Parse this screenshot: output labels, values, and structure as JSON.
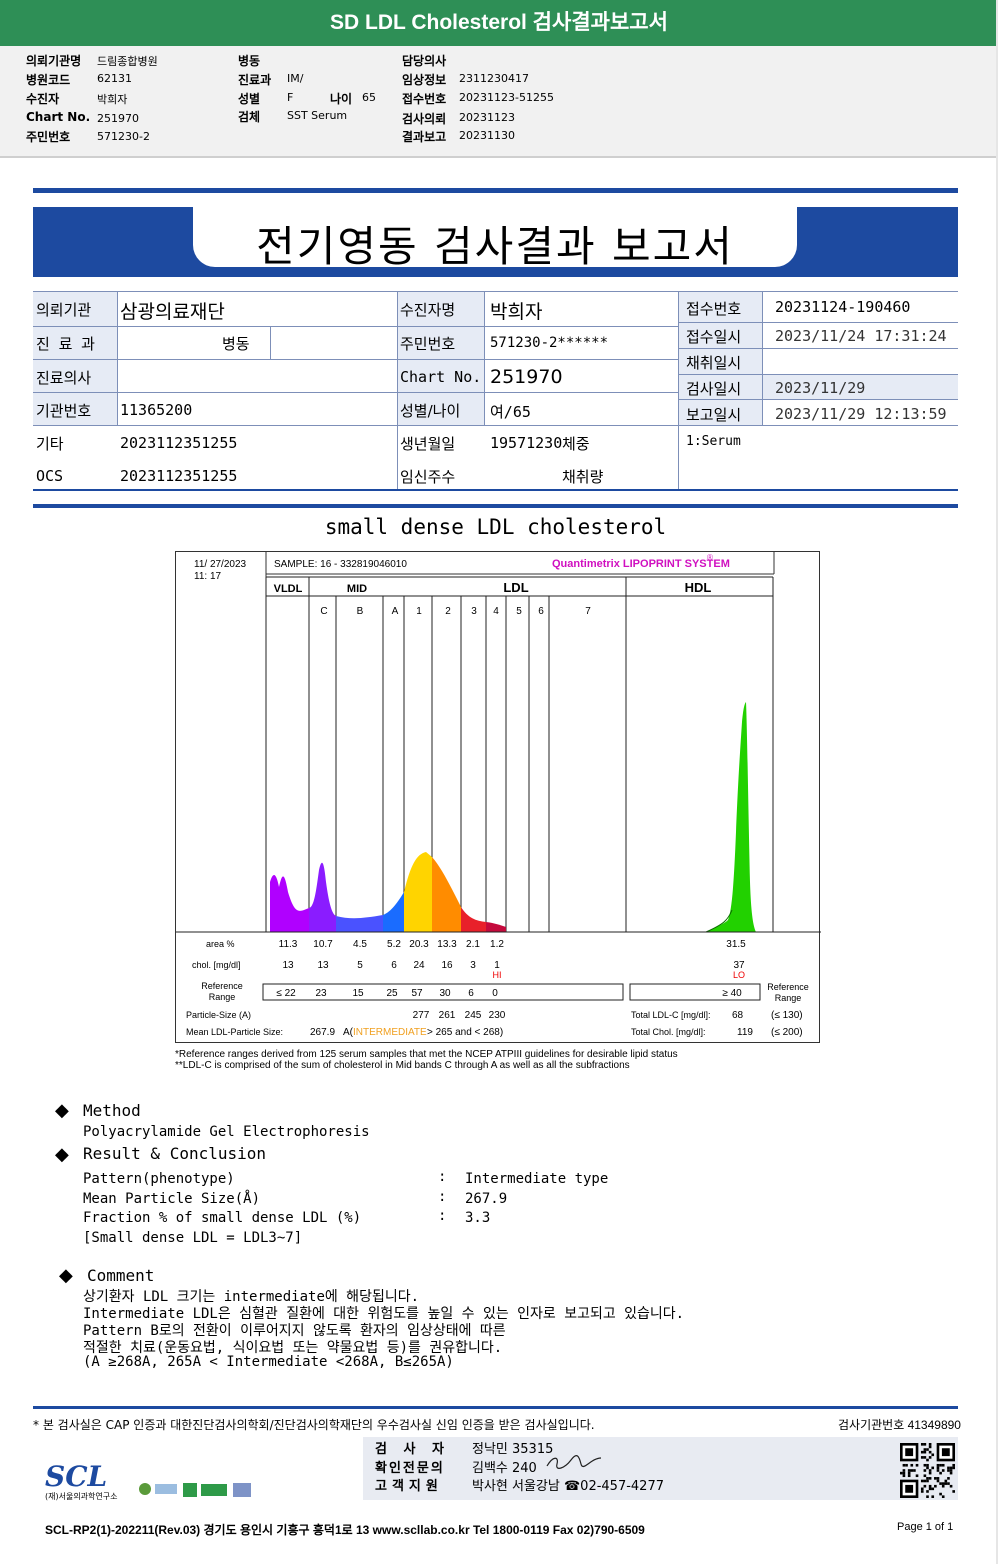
{
  "header": {
    "title": "SD LDL Cholesterol 검사결과보고서"
  },
  "info": {
    "col1": [
      {
        "label": "의뢰기관명",
        "value": "드림종합병원"
      },
      {
        "label": "병원코드",
        "value": "62131"
      },
      {
        "label": "수진자",
        "value": "박희자"
      },
      {
        "label": "Chart No.",
        "value": "251970"
      },
      {
        "label": "주민번호",
        "value": "571230-2"
      }
    ],
    "col2": [
      {
        "label": "병동",
        "value": ""
      },
      {
        "label": "진료과",
        "value": "IM/"
      },
      {
        "label": "성별",
        "value": "F"
      },
      {
        "label": "검체",
        "value": "SST Serum"
      }
    ],
    "age_label": "나이",
    "age_value": "65",
    "col3": [
      {
        "label": "담당의사",
        "value": ""
      },
      {
        "label": "임상정보",
        "value": "2311230417"
      },
      {
        "label": "접수번호",
        "value": "20231123-51255"
      },
      {
        "label": "검사의뢰",
        "value": "20231123"
      },
      {
        "label": "결과보고",
        "value": "20231130"
      }
    ]
  },
  "report": {
    "title": "전기영동 검사결과 보고서",
    "left_rows": [
      {
        "label": "의뢰기관",
        "value": "삼광의료재단"
      },
      {
        "label": "진 료 과",
        "value": "병동"
      },
      {
        "label": "진료의사",
        "value": ""
      },
      {
        "label": "기관번호",
        "value": "11365200"
      },
      {
        "label": "기타",
        "value": "2023112351255"
      },
      {
        "label": "OCS",
        "value": "2023112351255"
      }
    ],
    "mid_rows": [
      {
        "label": "수진자명",
        "value": "박희자"
      },
      {
        "label": "주민번호",
        "value": "571230-2******"
      },
      {
        "label": "Chart No.",
        "value": "251970"
      },
      {
        "label": "성별/나이",
        "value": "여/65"
      },
      {
        "label": "생년월일",
        "value": "19571230"
      },
      {
        "label": "임신주수",
        "value": ""
      }
    ],
    "weight_label": "체중",
    "volume_label": "채취량",
    "right_rows": [
      {
        "label": "접수번호",
        "value": "20231124-190460"
      },
      {
        "label": "접수일시",
        "value": "2023/11/24 17:31:24"
      },
      {
        "label": "채취일시",
        "value": ""
      },
      {
        "label": "검사일시",
        "value": "2023/11/29"
      },
      {
        "label": "보고일시",
        "value": "2023/11/29 12:13:59"
      }
    ],
    "specimen": "1:Serum"
  },
  "section_title": "small dense LDL cholesterol",
  "chart_data": {
    "type": "area",
    "date": "11/ 27/2023",
    "time": "11: 17",
    "sample": "SAMPLE:   16 - 332819046010",
    "brand": "Quantimetrix LIPOPRINT SYSTEM",
    "brand_mark": "®",
    "groups": [
      "VLDL",
      "MID",
      "LDL",
      "HDL"
    ],
    "bands": [
      "C",
      "B",
      "A",
      "1",
      "2",
      "3",
      "4",
      "5",
      "6",
      "7"
    ],
    "row_labels": {
      "area": "area %",
      "chol": "chol. [mg/dl]",
      "ref": "Reference Range",
      "particle": "Particle-Size (A)",
      "mean": "Mean LDL-Particle Size:",
      "ref_right": "Reference Range"
    },
    "area_pct": [
      "11.3",
      "10.7",
      "4.5",
      "5.2",
      "20.3",
      "13.3",
      "2.1",
      "1.2"
    ],
    "hdl_area": "31.5",
    "chol": [
      "13",
      "13",
      "5",
      "6",
      "24",
      "16",
      "3",
      "1"
    ],
    "hdl_chol": "37",
    "flag_hi": "HI",
    "flag_lo": "LO",
    "reference": [
      "≤ 22",
      "23",
      "15",
      "25",
      "57",
      "30",
      "6",
      "0"
    ],
    "hdl_reference": "≥ 40",
    "particle_sizes": [
      "277",
      "261",
      "245",
      "230"
    ],
    "mean_size": "267.9",
    "mean_class_a": "A(",
    "mean_class_mid": "INTERMEDIATE",
    "mean_class_b": "> 265 and < 268)",
    "total_ldl_label": "Total LDL-C [mg/dl]:",
    "total_ldl": "68",
    "total_ldl_ref": "(≤ 130)",
    "total_chol_label": "Total Chol. [mg/dl]:",
    "total_chol": "119",
    "total_chol_ref": "(≤ 200)",
    "colors": {
      "vldl": "#b000ff",
      "mid_c": "#8a1cff",
      "mid_b": "#4a52ff",
      "mid_a": "#1a6cff",
      "ldl1": "#ffd400",
      "ldl2": "#ff8c00",
      "ldl3": "#e8202a",
      "ldl4": "#c40a3c",
      "hdl": "#22d100"
    }
  },
  "notes": [
    "*Reference ranges derived from 125 serum samples that met the NCEP ATPIII guidelines for desirable lipid status",
    "**LDL-C is comprised of the sum of cholesterol in Mid bands C through A as well as all the subfractions"
  ],
  "method": {
    "heading": "Method",
    "text": "Polyacrylamide Gel Electrophoresis"
  },
  "result": {
    "heading": "Result & Conclusion",
    "rows": [
      {
        "label": "Pattern(phenotype)",
        "value": "Intermediate type"
      },
      {
        "label": "Mean Particle Size(Å)",
        "value": "267.9"
      },
      {
        "label": "Fraction % of small dense LDL (%)",
        "value": "3.3"
      }
    ],
    "note": "[Small dense LDL = LDL3~7]"
  },
  "comment": {
    "heading": "Comment",
    "lines": [
      "상기환자 LDL 크기는 intermediate에 해당됩니다.",
      "Intermediate LDL은 심혈관 질환에 대한 위험도를 높일 수 있는 인자로 보고되고 있습니다.",
      "Pattern B로의 전환이 이루어지지 않도록 환자의 임상상태에 따른",
      "적절한 치료(운동요법, 식이요법 또는 약물요법 등)를 권유합니다.",
      "(A ≥268A, 265A < Intermediate <268A, B≤265A)"
    ]
  },
  "footer": {
    "cert_note": "* 본 검사실은 CAP 인증과 대한진단검사의학회/진단검사의학재단의 우수검사실 신임 인증을 받은 검사실입니다.",
    "lab_number": "검사기관번호  41349890",
    "signers": [
      {
        "label": "검 사 자",
        "value": "정낙민 35315"
      },
      {
        "label": "확인전문의",
        "value": "김백수 240"
      },
      {
        "label": "고객지원",
        "value": "박사현 서울강남 ☎02-457-4277"
      }
    ],
    "logo": "SCL",
    "logo_sub": "(재)서울의과학연구소",
    "address": "SCL-RP2(1)-202211(Rev.03)  경기도 용인시 기흥구 흥덕1로 13  www.scllab.co.kr  Tel 1800-0119   Fax 02)790-6509",
    "page": "Page 1 of 1"
  }
}
